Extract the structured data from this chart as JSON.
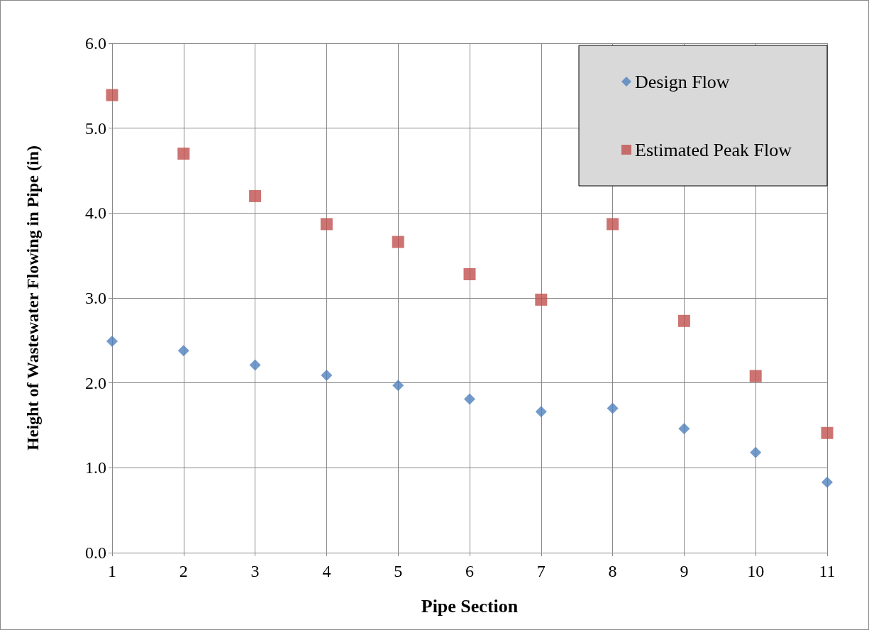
{
  "chart_data": {
    "type": "scatter",
    "xlabel": "Pipe Section",
    "ylabel": "Height of Wastewater Flowing in Pipe (in)",
    "xlim": [
      1,
      11
    ],
    "xticks": [
      1,
      2,
      3,
      4,
      5,
      6,
      7,
      8,
      9,
      10,
      11
    ],
    "ylim": [
      0,
      6
    ],
    "yticks": [
      {
        "value": 0,
        "label": "0.0"
      },
      {
        "value": 1,
        "label": "1.0"
      },
      {
        "value": 2,
        "label": "2.0"
      },
      {
        "value": 3,
        "label": "3.0"
      },
      {
        "value": 4,
        "label": "4.0"
      },
      {
        "value": 5,
        "label": "5.0"
      },
      {
        "value": 6,
        "label": "6.0"
      }
    ],
    "grid": true,
    "legend": "top right",
    "series": [
      {
        "name": "Design Flow",
        "color": "#4f81bd",
        "marker": "diamond",
        "x": [
          1,
          2,
          3,
          4,
          5,
          6,
          7,
          8,
          9,
          10,
          11
        ],
        "values": [
          2.49,
          2.38,
          2.21,
          2.09,
          1.97,
          1.81,
          1.66,
          1.7,
          1.46,
          1.18,
          0.83
        ]
      },
      {
        "name": "Estimated Peak Flow",
        "color": "#c0504d",
        "marker": "square",
        "x": [
          1,
          2,
          3,
          4,
          5,
          6,
          7,
          8,
          9,
          10,
          11
        ],
        "values": [
          5.39,
          4.7,
          4.2,
          3.87,
          3.66,
          3.28,
          2.98,
          3.87,
          2.73,
          2.08,
          1.41
        ]
      }
    ]
  }
}
